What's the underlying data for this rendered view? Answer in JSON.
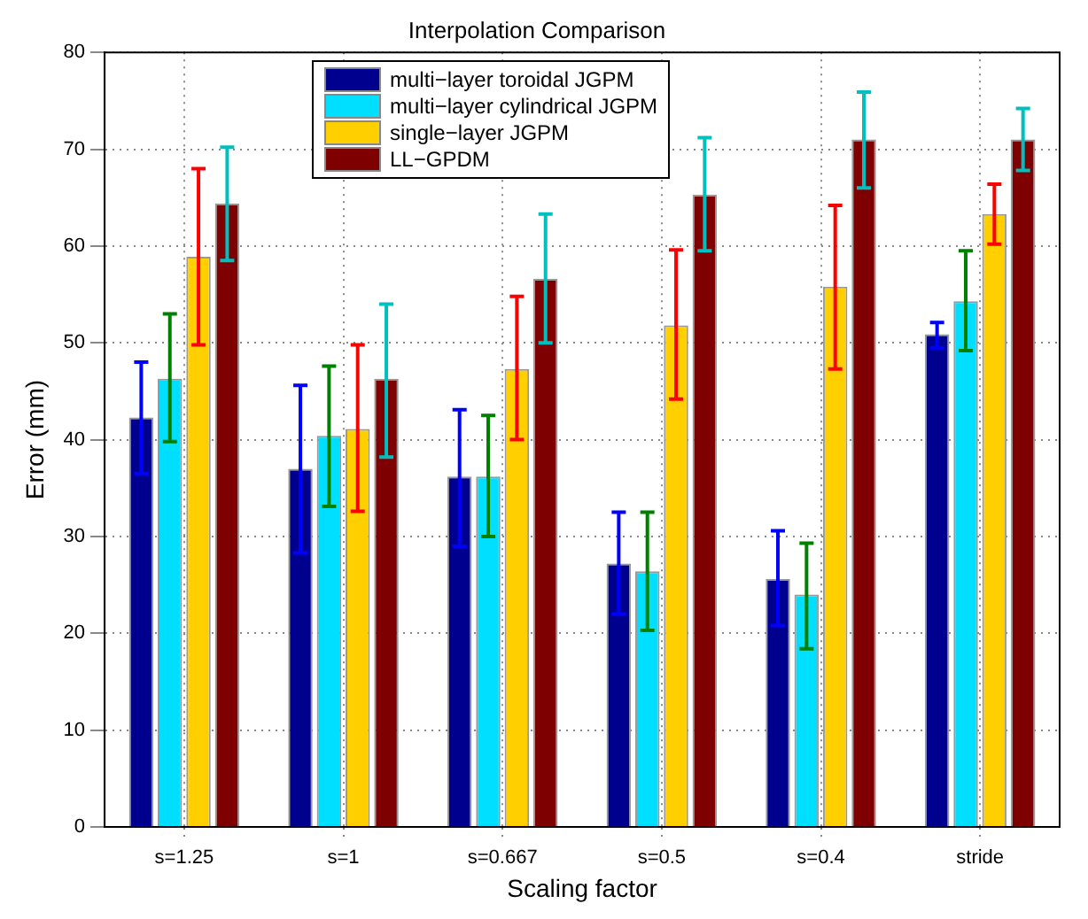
{
  "chart_data": {
    "type": "bar",
    "title": "Interpolation Comparison",
    "xlabel": "Scaling factor",
    "ylabel": "Error (mm)",
    "categories": [
      "s=1.25",
      "s=1",
      "s=0.667",
      "s=0.5",
      "s=0.4",
      "stride"
    ],
    "series": [
      {
        "name": "multi−layer toroidal JGPM",
        "color": "#00008f",
        "values": [
          42.3,
          37,
          36.2,
          27.2,
          25.6,
          50.9
        ],
        "errors": [
          [
            36.5,
            48
          ],
          [
            28.3,
            45.6
          ],
          [
            29,
            43.1
          ],
          [
            22,
            32.5
          ],
          [
            20.8,
            30.6
          ],
          [
            49.5,
            52.1
          ]
        ]
      },
      {
        "name": "multi−layer cylindrical JGPM",
        "color": "#00dfff",
        "values": [
          46.3,
          40.4,
          36.2,
          26.4,
          24,
          54.3
        ],
        "errors": [
          [
            39.8,
            53
          ],
          [
            33.1,
            47.6
          ],
          [
            30,
            42.5
          ],
          [
            20.3,
            32.5
          ],
          [
            18.4,
            29.3
          ],
          [
            49.2,
            59.5
          ]
        ]
      },
      {
        "name": "single−layer JGPM",
        "color": "#ffcf00",
        "values": [
          58.9,
          41.1,
          47.3,
          51.8,
          55.8,
          63.3
        ],
        "errors": [
          [
            49.8,
            68
          ],
          [
            32.6,
            49.8
          ],
          [
            40,
            54.8
          ],
          [
            44.2,
            59.6
          ],
          [
            47.3,
            64.2
          ],
          [
            60.2,
            66.4
          ]
        ]
      },
      {
        "name": "LL−GPDM",
        "color": "#7f0000",
        "values": [
          64.4,
          46.3,
          56.6,
          65.3,
          71,
          71
        ],
        "errors": [
          [
            58.5,
            70.2
          ],
          [
            38.2,
            54
          ],
          [
            50,
            63.3
          ],
          [
            59.5,
            71.2
          ],
          [
            66,
            75.9
          ],
          [
            67.8,
            74.2
          ]
        ]
      }
    ],
    "ylim": [
      0,
      80
    ],
    "yticks": [
      0,
      10,
      20,
      30,
      40,
      50,
      60,
      70,
      80
    ],
    "grid": true,
    "legend": "top left"
  }
}
